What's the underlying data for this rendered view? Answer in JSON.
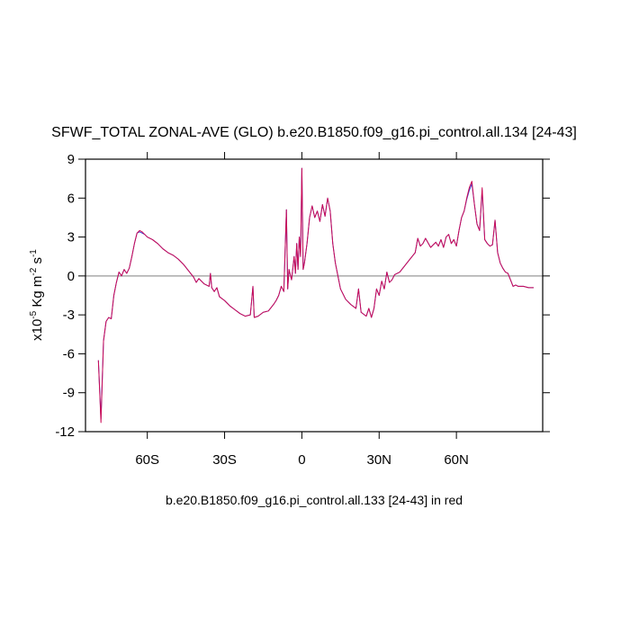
{
  "chart_data": {
    "type": "line",
    "title": "SFWF_TOTAL ZONAL-AVE (GLO) b.e20.B1850.f09_g16.pi_control.all.134 [24-43]",
    "xlabel": "b.e20.B1850.f09_g16.pi_control.all.133 [24-43] in red",
    "ylabel": [
      "x10",
      "-5",
      " Kg m",
      "-2",
      " s",
      "-1"
    ],
    "x": [
      -79,
      -78,
      -77,
      -76,
      -75,
      -74,
      -73,
      -72,
      -71,
      -70,
      -69,
      -68,
      -67,
      -66,
      -65,
      -64,
      -63,
      -62,
      -61,
      -60,
      -58,
      -56,
      -54,
      -52,
      -50,
      -48,
      -46,
      -44,
      -42,
      -41,
      -40,
      -38,
      -36,
      -35.5,
      -35,
      -34,
      -33,
      -32,
      -30,
      -28,
      -26,
      -24,
      -22,
      -20,
      -19,
      -18.5,
      -17,
      -15,
      -13,
      -11,
      -10,
      -9,
      -8,
      -7,
      -6,
      -5.5,
      -5,
      -4,
      -3,
      -2.5,
      -2,
      -1.5,
      -1,
      -0.5,
      0,
      0.5,
      1,
      2,
      3,
      4,
      5,
      6,
      7,
      8,
      9,
      10,
      11,
      12,
      13,
      14,
      15,
      17,
      19,
      21,
      22,
      23,
      25,
      26,
      27,
      28,
      29,
      30,
      31,
      32,
      33,
      34,
      35,
      36,
      38,
      40,
      42,
      44,
      45,
      46,
      47,
      48,
      50,
      52,
      53,
      54,
      55,
      56,
      57,
      58,
      59,
      60,
      61,
      62,
      63,
      64,
      65,
      66,
      67,
      68,
      69,
      70,
      71,
      72,
      73,
      74,
      75,
      76,
      77,
      78,
      79,
      80,
      81,
      82,
      83,
      84,
      86,
      88,
      90
    ],
    "series": [
      {
        "color": "#3c3cd0",
        "values": [
          -6.5,
          -11.0,
          -5,
          -3.5,
          -3.2,
          -3.3,
          -1.5,
          -0.5,
          0.3,
          0,
          0.5,
          0.2,
          0.6,
          1.5,
          2.5,
          3.3,
          3.4,
          3.3,
          3.2,
          3.0,
          2.8,
          2.5,
          2.1,
          1.8,
          1.6,
          1.3,
          0.9,
          0.4,
          -0.1,
          -0.5,
          -0.2,
          -0.6,
          -0.8,
          0.2,
          -0.9,
          -1.2,
          -0.9,
          -1.6,
          -1.9,
          -2.3,
          -2.6,
          -2.9,
          -3.1,
          -3.0,
          -0.8,
          -3.2,
          -3.1,
          -2.8,
          -2.7,
          -2.2,
          -1.9,
          -1.5,
          -0.8,
          -1.2,
          5.1,
          -1.0,
          0.5,
          -0.3,
          1.5,
          0.2,
          2.5,
          0.5,
          3.0,
          1.5,
          8.3,
          0.5,
          1.0,
          2.5,
          4.5,
          5.4,
          4.5,
          5.0,
          4.2,
          5.5,
          4.6,
          6.0,
          5.0,
          2.5,
          1.0,
          0.0,
          -1.0,
          -1.8,
          -2.2,
          -2.5,
          -1.0,
          -2.8,
          -3.1,
          -2.5,
          -3.2,
          -2.5,
          -1.0,
          -1.5,
          -0.4,
          -1.0,
          0.3,
          -0.5,
          -0.3,
          0.1,
          0.3,
          0.8,
          1.3,
          1.8,
          2.9,
          2.3,
          2.5,
          2.9,
          2.2,
          2.6,
          2.3,
          2.8,
          2.2,
          3.0,
          3.2,
          2.5,
          2.8,
          2.3,
          3.5,
          4.5,
          5.0,
          5.9,
          6.6,
          7.1,
          5.5,
          4.0,
          3.5,
          6.6,
          2.8,
          2.5,
          2.3,
          2.4,
          4.3,
          1.8,
          1.0,
          0.6,
          0.3,
          0.2,
          -0.3,
          -0.8,
          -0.7,
          -0.8,
          -0.8,
          -0.9,
          -0.9
        ]
      },
      {
        "color": "#cc0a55",
        "values": [
          -6.5,
          -11.3,
          -5,
          -3.5,
          -3.2,
          -3.3,
          -1.5,
          -0.5,
          0.3,
          0,
          0.5,
          0.2,
          0.6,
          1.5,
          2.5,
          3.3,
          3.5,
          3.4,
          3.2,
          3.0,
          2.8,
          2.5,
          2.1,
          1.8,
          1.6,
          1.3,
          0.9,
          0.4,
          -0.1,
          -0.5,
          -0.2,
          -0.6,
          -0.8,
          0.2,
          -0.9,
          -1.2,
          -0.9,
          -1.6,
          -1.9,
          -2.3,
          -2.6,
          -2.9,
          -3.1,
          -3.0,
          -0.8,
          -3.2,
          -3.1,
          -2.8,
          -2.7,
          -2.2,
          -1.9,
          -1.5,
          -0.8,
          -1.2,
          5.1,
          -1.0,
          0.5,
          -0.3,
          1.5,
          0.2,
          2.5,
          0.5,
          3.0,
          1.5,
          8.3,
          0.5,
          1.0,
          2.5,
          4.5,
          5.4,
          4.5,
          5.0,
          4.2,
          5.5,
          4.6,
          6.0,
          5.0,
          2.5,
          1.0,
          0.0,
          -1.0,
          -1.8,
          -2.2,
          -2.5,
          -1.0,
          -2.8,
          -3.1,
          -2.5,
          -3.2,
          -2.5,
          -1.0,
          -1.5,
          -0.4,
          -1.0,
          0.3,
          -0.5,
          -0.3,
          0.1,
          0.3,
          0.8,
          1.3,
          1.8,
          2.9,
          2.3,
          2.5,
          2.9,
          2.2,
          2.6,
          2.3,
          2.8,
          2.2,
          3.0,
          3.2,
          2.5,
          2.8,
          2.3,
          3.5,
          4.5,
          5.0,
          6.0,
          6.8,
          7.3,
          5.5,
          4.0,
          3.5,
          6.8,
          2.8,
          2.5,
          2.3,
          2.4,
          4.3,
          1.8,
          1.0,
          0.6,
          0.3,
          0.2,
          -0.3,
          -0.8,
          -0.7,
          -0.8,
          -0.8,
          -0.9,
          -0.9
        ]
      }
    ],
    "xlim": [
      -84,
      93.5
    ],
    "xticks": [
      {
        "value": -60,
        "label": "60S"
      },
      {
        "value": -30,
        "label": "30S"
      },
      0,
      {
        "value": 30,
        "label": "30N"
      },
      {
        "value": 60,
        "label": "60N"
      }
    ],
    "ylim": [
      -12,
      9
    ],
    "yticks": [
      -12,
      -9,
      -6,
      -3,
      0,
      3,
      6,
      9
    ],
    "reference_line": 0
  }
}
